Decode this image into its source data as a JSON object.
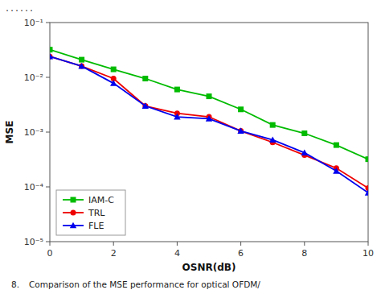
{
  "chart_data": {
    "type": "line",
    "x": [
      0,
      1,
      2,
      3,
      4,
      5,
      6,
      7,
      8,
      9,
      10
    ],
    "series": [
      {
        "name": "IAM-C",
        "color": "#00bb00",
        "marker": "square",
        "values": [
          0.032,
          0.021,
          0.014,
          0.0095,
          0.006,
          0.0045,
          0.0026,
          0.00135,
          0.00095,
          0.00058,
          0.00032
        ]
      },
      {
        "name": "TRL",
        "color": "#ee0000",
        "marker": "circle",
        "values": [
          0.024,
          0.016,
          0.0095,
          0.003,
          0.0022,
          0.0019,
          0.00105,
          0.00065,
          0.00038,
          0.00022,
          9.5e-05
        ]
      },
      {
        "name": "FLE",
        "color": "#0000ee",
        "marker": "triangle",
        "values": [
          0.024,
          0.016,
          0.0078,
          0.003,
          0.0019,
          0.00175,
          0.00105,
          0.00072,
          0.00042,
          0.000195,
          7.8e-05
        ]
      }
    ],
    "x_label": "OSNR(dB)",
    "y_label": "MSE",
    "log": "y",
    "xlim": [
      0,
      10
    ],
    "ylim": [
      1e-05,
      0.1
    ],
    "xticks": [
      0,
      2,
      4,
      6,
      8,
      10
    ],
    "yticks": [
      {
        "value": 1e-05,
        "label": "10⁻⁵"
      },
      {
        "value": 0.0001,
        "label": "10⁻⁴"
      },
      {
        "value": 0.001,
        "label": "10⁻³"
      },
      {
        "value": 0.01,
        "label": "10⁻²"
      },
      {
        "value": 0.1,
        "label": "10⁻¹"
      }
    ],
    "grid": false,
    "legend": "lower left",
    "annotations": [
      "......",
      "8.",
      "Comparison of the MSE performance for optical OFDM/"
    ]
  }
}
